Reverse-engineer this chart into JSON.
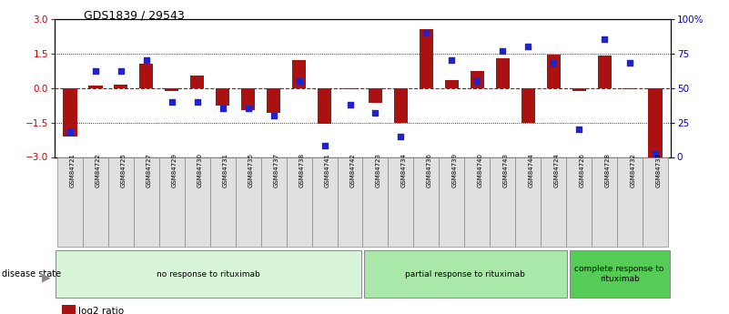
{
  "title": "GDS1839 / 29543",
  "samples": [
    "GSM84721",
    "GSM84722",
    "GSM84725",
    "GSM84727",
    "GSM84729",
    "GSM84730",
    "GSM84731",
    "GSM84735",
    "GSM84737",
    "GSM84738",
    "GSM84741",
    "GSM84742",
    "GSM84723",
    "GSM84734",
    "GSM84736",
    "GSM84739",
    "GSM84740",
    "GSM84743",
    "GSM84744",
    "GSM84724",
    "GSM84726",
    "GSM84728",
    "GSM84732",
    "GSM84733"
  ],
  "log2_ratio": [
    -2.1,
    0.1,
    0.15,
    1.05,
    -0.15,
    0.55,
    -0.75,
    -0.95,
    -1.1,
    1.2,
    -1.55,
    -0.05,
    -0.65,
    -1.5,
    2.55,
    0.35,
    0.75,
    1.3,
    -1.5,
    1.45,
    -0.12,
    1.4,
    -0.05,
    -3.0
  ],
  "percentile": [
    18,
    62,
    62,
    70,
    40,
    40,
    35,
    35,
    30,
    55,
    8,
    38,
    32,
    15,
    90,
    70,
    55,
    77,
    80,
    68,
    20,
    85,
    68,
    2
  ],
  "group_labels": [
    "no response to rituximab",
    "partial response to rituximab",
    "complete response to\nrituximab"
  ],
  "group_counts": [
    12,
    8,
    4
  ],
  "group_colors": [
    "#d9f5d9",
    "#aae8aa",
    "#55cc55"
  ],
  "bar_color": "#aa1111",
  "dot_color": "#2222cc",
  "ylim_left": [
    -3,
    3
  ],
  "ylim_right": [
    0,
    100
  ],
  "yticks_left": [
    -3,
    -1.5,
    0,
    1.5,
    3
  ],
  "yticks_right": [
    0,
    25,
    50,
    75,
    100
  ],
  "bg_color": "#ffffff",
  "left_axis_color": "#cc0000",
  "right_axis_color": "#0000cc"
}
